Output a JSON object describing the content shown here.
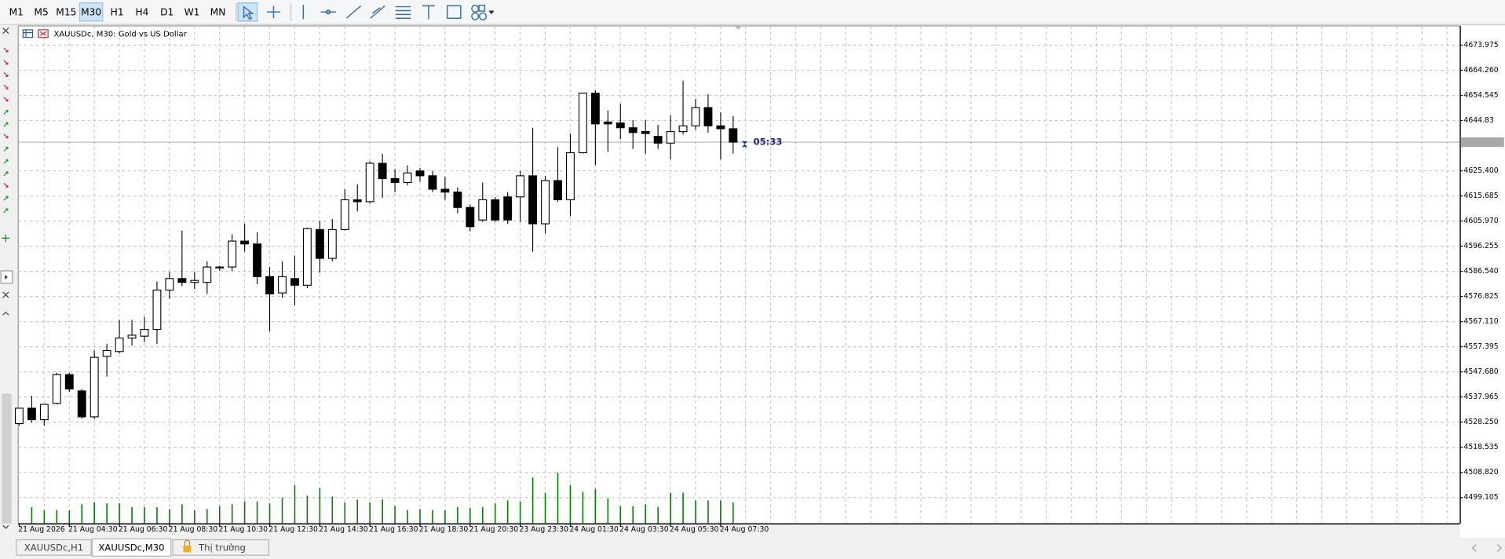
{
  "toolbar": {
    "timeframes": [
      "M1",
      "M5",
      "M15",
      "M30",
      "H1",
      "H4",
      "D1",
      "W1",
      "MN"
    ],
    "active": 3
  },
  "tabs": [
    "XAUUSDc,H1",
    "XAUUSDc,M30",
    "Thị trường"
  ],
  "active_tab": 1,
  "chart_data": {
    "type": "candlestick",
    "title": "XAUUSDc, M30:  Gold vs US Dollar",
    "categories": [
      "21 Aug 2026",
      null,
      null,
      null,
      "21 Aug 04:30",
      null,
      null,
      null,
      "21 Aug 06:30",
      null,
      null,
      null,
      "21 Aug 08:30",
      null,
      null,
      null,
      "21 Aug 10:30",
      null,
      null,
      null,
      "21 Aug 12:30",
      null,
      null,
      null,
      "21 Aug 14:30",
      null,
      null,
      null,
      "21 Aug 16:30",
      null,
      null,
      null,
      "21 Aug 18:30",
      null,
      null,
      null,
      "21 Aug 20:30",
      null,
      null,
      null,
      "23 Aug 23:30",
      null,
      null,
      null,
      "24 Aug 01:30",
      null,
      null,
      null,
      "24 Aug 03:30",
      null,
      null,
      null,
      "24 Aug 05:30",
      null,
      null,
      null,
      "24 Aug 07:30",
      null
    ],
    "open": [
      4527.69,
      4533.63,
      4529.18,
      4535.49,
      4546.63,
      4540.32,
      4530.29,
      4553.68,
      4555.54,
      4560.74,
      4561.48,
      4564.08,
      4579.3,
      4583.75,
      4582.27,
      4582.27,
      4587.84,
      4588.21,
      4598.23,
      4597.12,
      4584.5,
      4578.19,
      4583.75,
      4581.16,
      4602.69,
      4591.55,
      4602.69,
      4614.2,
      4613.46,
      4628.31,
      4622.37,
      4620.88,
      4625.34,
      4623.48,
      4618.28,
      4617.17,
      4611.23,
      4606.4,
      4614.2,
      4615.31,
      4615.31,
      4623.48,
      4604.92,
      4621.62,
      4614.2,
      4632.39,
      4655.41,
      4644.27,
      4643.9,
      4642.04,
      4640.56,
      4638.7,
      4636.1,
      4640.56,
      4642.78,
      4649.84,
      4642.78,
      4641.67
    ],
    "high": [
      4533.63,
      4538.46,
      4535.12,
      4547.37,
      4547.37,
      4541.06,
      4555.91,
      4558.51,
      4567.79,
      4567.79,
      4568.9,
      4582.64,
      4586.35,
      4602.32,
      4586.35,
      4590.44,
      4588.58,
      4600.83,
      4604.92,
      4601.58,
      4588.21,
      4590.44,
      4592.66,
      4603.43,
      4606.03,
      4606.77,
      4618.28,
      4620.14,
      4629.05,
      4632.02,
      4626.08,
      4627.56,
      4626.45,
      4625.34,
      4623.11,
      4619.02,
      4612.34,
      4620.88,
      4615.31,
      4617.17,
      4625.34,
      4642.04,
      4623.48,
      4634.62,
      4639.81,
      4655.41,
      4656.52,
      4648.73,
      4651.32,
      4645.01,
      4645.01,
      4643.16,
      4646.87,
      4660.23,
      4653.18,
      4655.04,
      4647.98,
      4646.5
    ],
    "low": [
      4526.95,
      4528.07,
      4526.95,
      4535.12,
      4539.95,
      4529.55,
      4529.55,
      4545.89,
      4554.8,
      4557.77,
      4559.25,
      4558.51,
      4575.96,
      4580.78,
      4579.67,
      4577.81,
      4586.72,
      4586.72,
      4594.15,
      4581.53,
      4563.34,
      4576.33,
      4573.36,
      4580.04,
      4585.98,
      4590.44,
      4602.32,
      4609.74,
      4612.71,
      4614.94,
      4617.17,
      4619.77,
      4621.25,
      4617.17,
      4614.2,
      4609,
      4601.95,
      4605.66,
      4605.66,
      4604.92,
      4605.66,
      4594.15,
      4601.2,
      4613.46,
      4607.89,
      4632.02,
      4627.56,
      4632.76,
      4637.59,
      4633.87,
      4632.02,
      4633.87,
      4629.79,
      4639.44,
      4641.3,
      4640.19,
      4629.79,
      4632.02
    ],
    "close": [
      4533.63,
      4529.18,
      4535.12,
      4546.63,
      4541.06,
      4530.29,
      4553.31,
      4555.91,
      4560.74,
      4561.85,
      4564.08,
      4579.3,
      4583.75,
      4582.27,
      4583.01,
      4588.21,
      4588.21,
      4598.23,
      4597.12,
      4584.5,
      4577.81,
      4584.5,
      4581.16,
      4603.06,
      4591.55,
      4602.69,
      4614.2,
      4613.46,
      4628.31,
      4622.37,
      4620.88,
      4624.59,
      4623.48,
      4618.28,
      4617.17,
      4611.23,
      4603.8,
      4614.2,
      4606.4,
      4606.4,
      4623.48,
      4604.92,
      4621.62,
      4614.2,
      4632.39,
      4655.41,
      4643.53,
      4643.53,
      4642.04,
      4640.19,
      4639.81,
      4636.1,
      4640.56,
      4642.78,
      4649.84,
      4642.78,
      4641.67,
      4636.47
    ],
    "volume": [
      null,
      17,
      14,
      14,
      14,
      20,
      22,
      21,
      21,
      17,
      17,
      17,
      15,
      20,
      14,
      15,
      18,
      20,
      23,
      23,
      21,
      27,
      40,
      29,
      37,
      28,
      22,
      25,
      22,
      25,
      18,
      14,
      15,
      14,
      14,
      17,
      16,
      17,
      21,
      24,
      23,
      48,
      32,
      53,
      40,
      33,
      36,
      26,
      18,
      18,
      20,
      17,
      32,
      32,
      24,
      24,
      24,
      22
    ],
    "up_color": "#ffffff",
    "down_color": "#000000",
    "volume_color": "#008000",
    "current_price": 4636.47,
    "timer": "05:33",
    "ylim": [
      4489.08,
      4681.4
    ],
    "y2lim": [
      0,
      60
    ],
    "yticks": [
      4673.975,
      {
        "value": 4664.26,
        "label": "4664.260"
      },
      4654.545,
      4644.83,
      {
        "value": 4625.4,
        "label": "4625.400"
      },
      4615.685,
      {
        "value": 4605.97,
        "label": "4605.970"
      },
      4596.255,
      {
        "value": 4586.54,
        "label": "4586.540"
      },
      4576.825,
      {
        "value": 4567.11,
        "label": "4567.110"
      },
      4557.395,
      {
        "value": 4547.68,
        "label": "4547.680"
      },
      4537.965,
      {
        "value": 4528.25,
        "label": "4528.250"
      },
      4518.535,
      {
        "value": 4508.82,
        "label": "4508.820"
      },
      4499.105
    ],
    "grid": true
  }
}
